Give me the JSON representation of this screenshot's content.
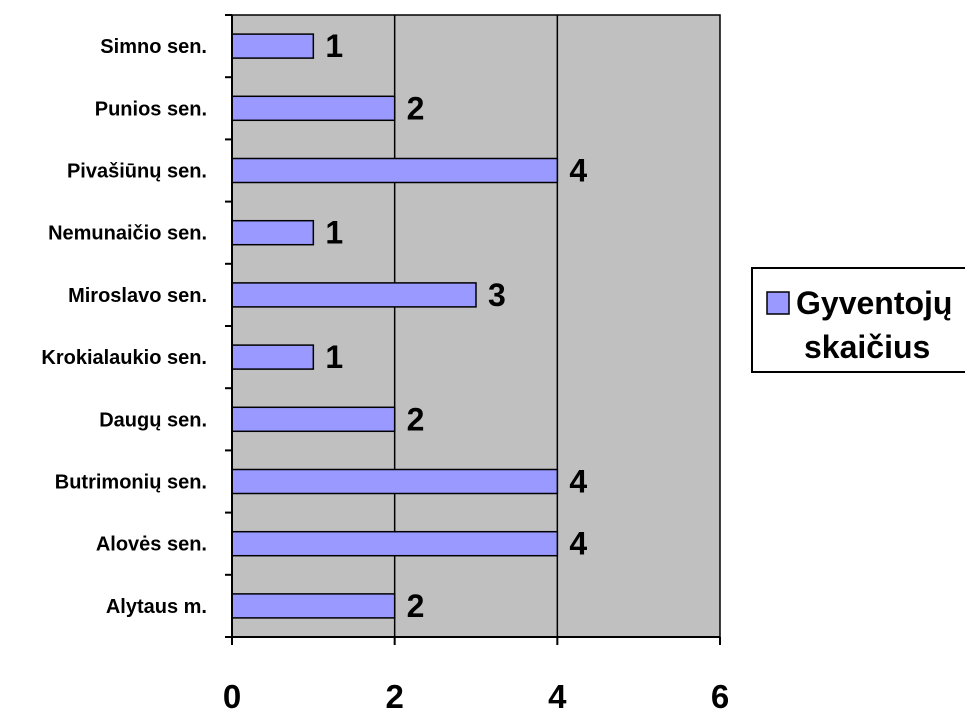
{
  "chart_data": {
    "type": "bar",
    "orientation": "horizontal",
    "categories": [
      "Alytaus m.",
      "Alovės sen.",
      "Butrimonių sen.",
      "Daugų sen.",
      "Krokialaukio sen.",
      "Miroslavo sen.",
      "Nemunaičio sen.",
      "Pivašiūnų sen.",
      "Punios sen.",
      "Simno sen."
    ],
    "series": [
      {
        "name": "Gyventojų skaičius",
        "values": [
          2,
          4,
          4,
          2,
          1,
          3,
          1,
          4,
          2,
          1
        ]
      }
    ],
    "xlim": [
      0,
      6
    ],
    "xticks": [
      0,
      2,
      4,
      6
    ],
    "xtick_labels": [
      "0",
      "2",
      "4",
      "6"
    ],
    "data_labels": true,
    "grid": "vertical",
    "legend_position": "right",
    "colors": {
      "bar_fill": "#9999ff",
      "bar_stroke": "#000000",
      "plot_background": "#c0c0c0"
    }
  },
  "legend": {
    "line1": "Gyventojų",
    "line2": "skaičius"
  }
}
